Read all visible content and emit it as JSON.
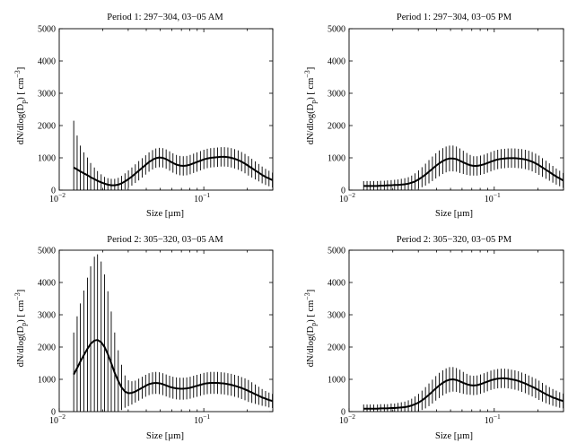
{
  "chart_data": [
    {
      "type": "line",
      "title": "Period 1: 297−304, 03−05 AM",
      "xlabel": "Size [µm]",
      "ylabel_main": "dN/dlog(D",
      "ylabel_sub": "p",
      "ylabel_mid": ") [ cm",
      "ylabel_sup": "−3",
      "ylabel_end": "]",
      "x_scale": "log",
      "xlim": [
        0.01,
        0.3
      ],
      "ylim": [
        0,
        5000
      ],
      "y_ticks": [
        "0",
        "1000",
        "2000",
        "3000",
        "4000",
        "5000"
      ],
      "x_ticks": [
        {
          "base": "10",
          "exp": "−2",
          "value": 0.01
        },
        {
          "base": "10",
          "exp": "−1",
          "value": 0.1
        }
      ],
      "series": [
        {
          "x": [
            0.0126,
            0.0133,
            0.014,
            0.0148,
            0.0157,
            0.0165,
            0.0175,
            0.0184,
            0.0195,
            0.0206,
            0.0217,
            0.0229,
            0.0242,
            0.0256,
            0.027,
            0.0285,
            0.0301,
            0.0318,
            0.0336,
            0.0355,
            0.0375,
            0.0396,
            0.0418,
            0.0442,
            0.0466,
            0.0492,
            0.052,
            0.0549,
            0.058,
            0.0612,
            0.0647,
            0.0683,
            0.0721,
            0.0762,
            0.0805,
            0.085,
            0.0897,
            0.0948,
            0.1001,
            0.1057,
            0.1116,
            0.1179,
            0.1245,
            0.1315,
            0.1389,
            0.1467,
            0.1549,
            0.1636,
            0.1728,
            0.1825,
            0.1927,
            0.2035,
            0.2149,
            0.227,
            0.2398,
            0.2532,
            0.2674,
            0.2824,
            0.2983
          ],
          "y": [
            700,
            640,
            580,
            520,
            460,
            400,
            340,
            290,
            240,
            200,
            170,
            150,
            150,
            170,
            210,
            270,
            340,
            420,
            510,
            600,
            690,
            780,
            870,
            940,
            990,
            1010,
            1000,
            960,
            900,
            840,
            790,
            760,
            750,
            760,
            790,
            830,
            870,
            910,
            950,
            980,
            1000,
            1010,
            1020,
            1030,
            1030,
            1020,
            1000,
            970,
            930,
            880,
            820,
            750,
            680,
            610,
            540,
            470,
            410,
            360,
            310
          ],
          "err": [
            1450,
            1050,
            800,
            650,
            550,
            440,
            360,
            300,
            250,
            210,
            200,
            200,
            200,
            210,
            230,
            250,
            270,
            280,
            290,
            300,
            300,
            300,
            300,
            300,
            300,
            300,
            300,
            300,
            300,
            300,
            300,
            300,
            300,
            300,
            300,
            300,
            300,
            300,
            300,
            300,
            300,
            300,
            300,
            300,
            300,
            300,
            300,
            300,
            300,
            300,
            300,
            300,
            290,
            280,
            270,
            260,
            250,
            240,
            230
          ]
        }
      ]
    },
    {
      "type": "line",
      "title": "Period 1: 297−304, 03−05 PM",
      "xlabel": "Size [µm]",
      "ylabel_main": "dN/dlog(D",
      "ylabel_sub": "p",
      "ylabel_mid": ") [ cm",
      "ylabel_sup": "−3",
      "ylabel_end": "]",
      "x_scale": "log",
      "xlim": [
        0.01,
        0.3
      ],
      "ylim": [
        0,
        5000
      ],
      "y_ticks": [
        "0",
        "1000",
        "2000",
        "3000",
        "4000",
        "5000"
      ],
      "x_ticks": [
        {
          "base": "10",
          "exp": "−2",
          "value": 0.01
        },
        {
          "base": "10",
          "exp": "−1",
          "value": 0.1
        }
      ],
      "series": [
        {
          "x": [
            0.0126,
            0.0133,
            0.014,
            0.0148,
            0.0157,
            0.0165,
            0.0175,
            0.0184,
            0.0195,
            0.0206,
            0.0217,
            0.0229,
            0.0242,
            0.0256,
            0.027,
            0.0285,
            0.0301,
            0.0318,
            0.0336,
            0.0355,
            0.0375,
            0.0396,
            0.0418,
            0.0442,
            0.0466,
            0.0492,
            0.052,
            0.0549,
            0.058,
            0.0612,
            0.0647,
            0.0683,
            0.0721,
            0.0762,
            0.0805,
            0.085,
            0.0897,
            0.0948,
            0.1001,
            0.1057,
            0.1116,
            0.1179,
            0.1245,
            0.1315,
            0.1389,
            0.1467,
            0.1549,
            0.1636,
            0.1728,
            0.1825,
            0.1927,
            0.2035,
            0.2149,
            0.227,
            0.2398,
            0.2532,
            0.2674,
            0.2824,
            0.2983
          ],
          "y": [
            130,
            130,
            130,
            130,
            130,
            140,
            140,
            150,
            150,
            160,
            160,
            170,
            180,
            200,
            230,
            270,
            330,
            400,
            480,
            570,
            660,
            750,
            830,
            900,
            950,
            980,
            980,
            960,
            910,
            860,
            810,
            770,
            750,
            750,
            770,
            800,
            840,
            880,
            920,
            950,
            970,
            980,
            990,
            990,
            990,
            980,
            970,
            950,
            920,
            880,
            830,
            770,
            700,
            630,
            560,
            490,
            420,
            360,
            300
          ],
          "err": [
            150,
            150,
            150,
            150,
            150,
            150,
            150,
            150,
            160,
            160,
            170,
            180,
            190,
            200,
            220,
            250,
            280,
            310,
            340,
            360,
            380,
            390,
            400,
            400,
            400,
            400,
            400,
            390,
            380,
            360,
            340,
            320,
            300,
            300,
            300,
            300,
            300,
            300,
            300,
            300,
            300,
            300,
            300,
            300,
            300,
            300,
            300,
            300,
            300,
            300,
            300,
            300,
            290,
            280,
            270,
            260,
            250,
            240,
            230
          ]
        }
      ]
    },
    {
      "type": "line",
      "title": "Period 2: 305−320, 03−05 AM",
      "xlabel": "Size [µm]",
      "ylabel_main": "dN/dlog(D",
      "ylabel_sub": "p",
      "ylabel_mid": ") [ cm",
      "ylabel_sup": "−3",
      "ylabel_end": "]",
      "x_scale": "log",
      "xlim": [
        0.01,
        0.3
      ],
      "ylim": [
        0,
        5000
      ],
      "y_ticks": [
        "0",
        "1000",
        "2000",
        "3000",
        "4000",
        "5000"
      ],
      "x_ticks": [
        {
          "base": "10",
          "exp": "−2",
          "value": 0.01
        },
        {
          "base": "10",
          "exp": "−1",
          "value": 0.1
        }
      ],
      "series": [
        {
          "x": [
            0.0126,
            0.0133,
            0.014,
            0.0148,
            0.0157,
            0.0165,
            0.0175,
            0.0184,
            0.0195,
            0.0206,
            0.0217,
            0.0229,
            0.0242,
            0.0256,
            0.027,
            0.0285,
            0.0301,
            0.0318,
            0.0336,
            0.0355,
            0.0375,
            0.0396,
            0.0418,
            0.0442,
            0.0466,
            0.0492,
            0.052,
            0.0549,
            0.058,
            0.0612,
            0.0647,
            0.0683,
            0.0721,
            0.0762,
            0.0805,
            0.085,
            0.0897,
            0.0948,
            0.1001,
            0.1057,
            0.1116,
            0.1179,
            0.1245,
            0.1315,
            0.1389,
            0.1467,
            0.1549,
            0.1636,
            0.1728,
            0.1825,
            0.1927,
            0.2035,
            0.2149,
            0.227,
            0.2398,
            0.2532,
            0.2674,
            0.2824,
            0.2983
          ],
          "y": [
            1150,
            1350,
            1550,
            1750,
            1950,
            2100,
            2200,
            2220,
            2150,
            2000,
            1780,
            1500,
            1200,
            950,
            750,
            620,
            570,
            580,
            620,
            680,
            740,
            800,
            850,
            880,
            890,
            880,
            850,
            810,
            770,
            740,
            720,
            710,
            710,
            720,
            740,
            770,
            800,
            830,
            860,
            880,
            890,
            890,
            890,
            880,
            870,
            850,
            830,
            800,
            770,
            730,
            690,
            640,
            590,
            540,
            490,
            440,
            400,
            360,
            330
          ],
          "err": [
            1300,
            1600,
            1800,
            2000,
            2200,
            2400,
            2600,
            2650,
            2500,
            2250,
            1950,
            1600,
            1250,
            950,
            700,
            500,
            400,
            360,
            340,
            340,
            340,
            340,
            340,
            340,
            340,
            340,
            340,
            340,
            340,
            340,
            340,
            340,
            340,
            340,
            340,
            340,
            340,
            340,
            340,
            340,
            340,
            340,
            340,
            340,
            340,
            340,
            340,
            340,
            340,
            340,
            340,
            340,
            320,
            300,
            280,
            260,
            240,
            230,
            220
          ]
        }
      ]
    },
    {
      "type": "line",
      "title": "Period 2: 305−320, 03−05 PM",
      "xlabel": "Size [µm]",
      "ylabel_main": "dN/dlog(D",
      "ylabel_sub": "p",
      "ylabel_mid": ") [ cm",
      "ylabel_sup": "−3",
      "ylabel_end": "]",
      "x_scale": "log",
      "xlim": [
        0.01,
        0.3
      ],
      "ylim": [
        0,
        5000
      ],
      "y_ticks": [
        "0",
        "1000",
        "2000",
        "3000",
        "4000",
        "5000"
      ],
      "x_ticks": [
        {
          "base": "10",
          "exp": "−2",
          "value": 0.01
        },
        {
          "base": "10",
          "exp": "−1",
          "value": 0.1
        }
      ],
      "series": [
        {
          "x": [
            0.0126,
            0.0133,
            0.014,
            0.0148,
            0.0157,
            0.0165,
            0.0175,
            0.0184,
            0.0195,
            0.0206,
            0.0217,
            0.0229,
            0.0242,
            0.0256,
            0.027,
            0.0285,
            0.0301,
            0.0318,
            0.0336,
            0.0355,
            0.0375,
            0.0396,
            0.0418,
            0.0442,
            0.0466,
            0.0492,
            0.052,
            0.0549,
            0.058,
            0.0612,
            0.0647,
            0.0683,
            0.0721,
            0.0762,
            0.0805,
            0.085,
            0.0897,
            0.0948,
            0.1001,
            0.1057,
            0.1116,
            0.1179,
            0.1245,
            0.1315,
            0.1389,
            0.1467,
            0.1549,
            0.1636,
            0.1728,
            0.1825,
            0.1927,
            0.2035,
            0.2149,
            0.227,
            0.2398,
            0.2532,
            0.2674,
            0.2824,
            0.2983
          ],
          "y": [
            90,
            90,
            90,
            90,
            90,
            100,
            100,
            100,
            110,
            110,
            120,
            130,
            140,
            160,
            190,
            230,
            280,
            350,
            430,
            520,
            620,
            720,
            810,
            890,
            950,
            990,
            1000,
            980,
            940,
            890,
            850,
            820,
            810,
            820,
            850,
            890,
            930,
            970,
            1000,
            1020,
            1030,
            1030,
            1020,
            1000,
            980,
            950,
            910,
            870,
            820,
            770,
            720,
            660,
            600,
            540,
            490,
            440,
            400,
            360,
            330
          ],
          "err": [
            130,
            130,
            130,
            130,
            130,
            130,
            130,
            130,
            140,
            140,
            150,
            160,
            170,
            190,
            210,
            240,
            270,
            300,
            330,
            350,
            370,
            380,
            390,
            390,
            390,
            390,
            380,
            370,
            360,
            340,
            320,
            300,
            300,
            300,
            300,
            300,
            300,
            300,
            300,
            300,
            300,
            300,
            300,
            300,
            300,
            300,
            300,
            300,
            300,
            300,
            300,
            300,
            290,
            280,
            270,
            260,
            250,
            240,
            230
          ]
        }
      ]
    }
  ]
}
